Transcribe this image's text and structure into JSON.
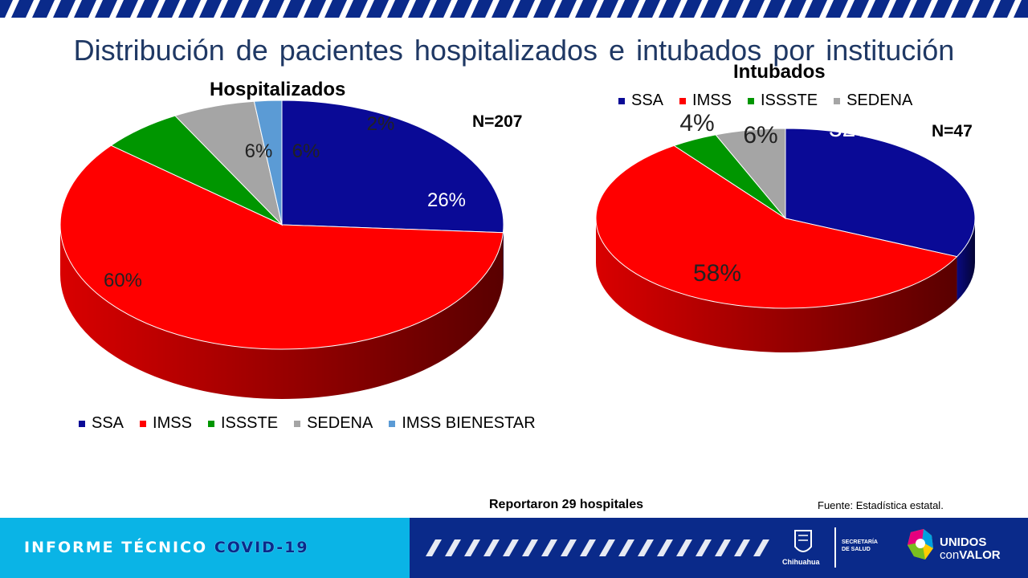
{
  "title": "Distribución de pacientes hospitalizados e intubados por institución",
  "colors": {
    "SSA": "#0a0a96",
    "IMSS": "#ff0000",
    "ISSSTE": "#009600",
    "SEDENA": "#a5a5a5",
    "IMSS BIENESTAR": "#5b9bd5",
    "title": "#1f3864",
    "footer_left": "#0ab4e6",
    "footer_right": "#0a2a8a"
  },
  "chart_data": [
    {
      "type": "pie",
      "title": "Hospitalizados",
      "n_label": "N=207",
      "categories": [
        "SSA",
        "IMSS",
        "ISSSTE",
        "SEDENA",
        "IMSS BIENESTAR"
      ],
      "values": [
        26,
        60,
        6,
        6,
        2
      ],
      "data_labels": [
        "26%",
        "60%",
        "6%",
        "6%",
        "2%"
      ],
      "legend": [
        "SSA",
        "IMSS",
        "ISSSTE",
        "SEDENA",
        "IMSS BIENESTAR"
      ],
      "legend_position": "bottom",
      "style": "3d"
    },
    {
      "type": "pie",
      "title": "Intubados",
      "n_label": "N=47",
      "categories": [
        "SSA",
        "IMSS",
        "ISSSTE",
        "SEDENA"
      ],
      "values": [
        32,
        58,
        4,
        6
      ],
      "data_labels": [
        "32%",
        "58%",
        "4%",
        "6%"
      ],
      "legend": [
        "SSA",
        "IMSS",
        "ISSSTE",
        "SEDENA"
      ],
      "legend_position": "top",
      "style": "3d"
    }
  ],
  "footer": {
    "reported": "Reportaron 29 hospitales",
    "source": "Fuente: Estadística estatal.",
    "banner_left": "INFORME TÉCNICO",
    "banner_covid": "COVID-19",
    "logo_city": "Chihuahua",
    "logo_secretaria": "SECRETARÍA DE SALUD",
    "logo_unidos": "UNIDOS",
    "logo_con": "con",
    "logo_valor": "VALOR",
    "logo_icons": [
      "chihuahua-seal-icon",
      "unidos-con-valor-map-icon"
    ]
  }
}
